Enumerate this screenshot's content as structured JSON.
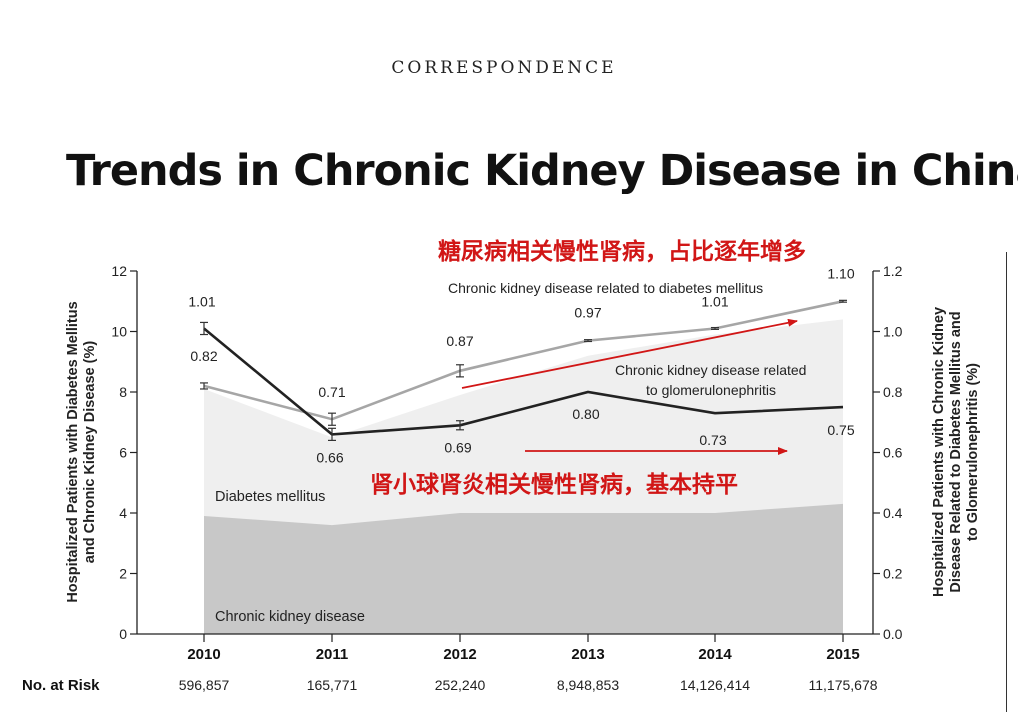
{
  "header": {
    "section_label": "CORRESPONDENCE",
    "title": "Trends in Chronic Kidney Disease in China"
  },
  "annotations": {
    "top": "糖尿病相关慢性肾病，占比逐年增多",
    "bottom": "肾小球肾炎相关慢性肾病，基本持平"
  },
  "colors": {
    "dm_area": "#efefef",
    "ckd_area": "#c8c8c8",
    "dm_line": "#a6a6a6",
    "gn_line": "#222222",
    "annotation": "#d11616"
  },
  "chart_data": {
    "type": "area",
    "x": [
      "2010",
      "2011",
      "2012",
      "2013",
      "2014",
      "2015"
    ],
    "xlabel": "",
    "ylabel_left": "Hospitalized Patients with Diabetes Mellitus and Chronic Kidney Disease (%)",
    "ylabel_right": "Hospitalized Patients with Chronic Kidney Disease Related to Diabetes Mellitus and to Glomerulonephritis (%)",
    "ylim_left": [
      0,
      12
    ],
    "yticks_left": [
      "0",
      "2",
      "4",
      "6",
      "8",
      "10",
      "12"
    ],
    "ylim_right": [
      0,
      1.2
    ],
    "yticks_right": [
      "0.0",
      "0.2",
      "0.4",
      "0.6",
      "0.8",
      "1.0",
      "1.2"
    ],
    "area_series": [
      {
        "name": "Diabetes mellitus",
        "axis": "left",
        "values": [
          8.1,
          6.5,
          7.9,
          9.2,
          9.9,
          10.4
        ]
      },
      {
        "name": "Chronic kidney disease",
        "axis": "left",
        "values": [
          3.9,
          3.6,
          4.0,
          4.0,
          4.0,
          4.3
        ]
      }
    ],
    "line_series": [
      {
        "name": "Chronic kidney disease related to diabetes mellitus",
        "axis": "right",
        "values": [
          0.82,
          0.71,
          0.87,
          0.97,
          1.01,
          1.1
        ],
        "labels": [
          "0.82",
          "0.71",
          "0.87",
          "0.97",
          "1.01",
          "1.10"
        ],
        "error": [
          0.01,
          0.02,
          0.02,
          0.003,
          0.003,
          0.003
        ],
        "series_label": "Chronic kidney disease related to diabetes mellitus"
      },
      {
        "name": "Chronic kidney disease related to glomerulonephritis",
        "axis": "right",
        "values": [
          1.01,
          0.66,
          0.69,
          0.8,
          0.73,
          0.75
        ],
        "labels": [
          "1.01",
          "0.66",
          "0.69",
          "0.80",
          "0.73",
          "0.75"
        ],
        "error": [
          0.02,
          0.02,
          0.015,
          0,
          0,
          0
        ],
        "series_label": [
          "Chronic kidney disease related",
          "to glomerulonephritis"
        ]
      }
    ],
    "area_labels": [
      "Diabetes mellitus",
      "Chronic kidney disease"
    ],
    "risk_table": {
      "label": "No. at Risk",
      "values": [
        "596,857",
        "165,771",
        "252,240",
        "8,948,853",
        "14,126,414",
        "11,175,678"
      ]
    }
  }
}
